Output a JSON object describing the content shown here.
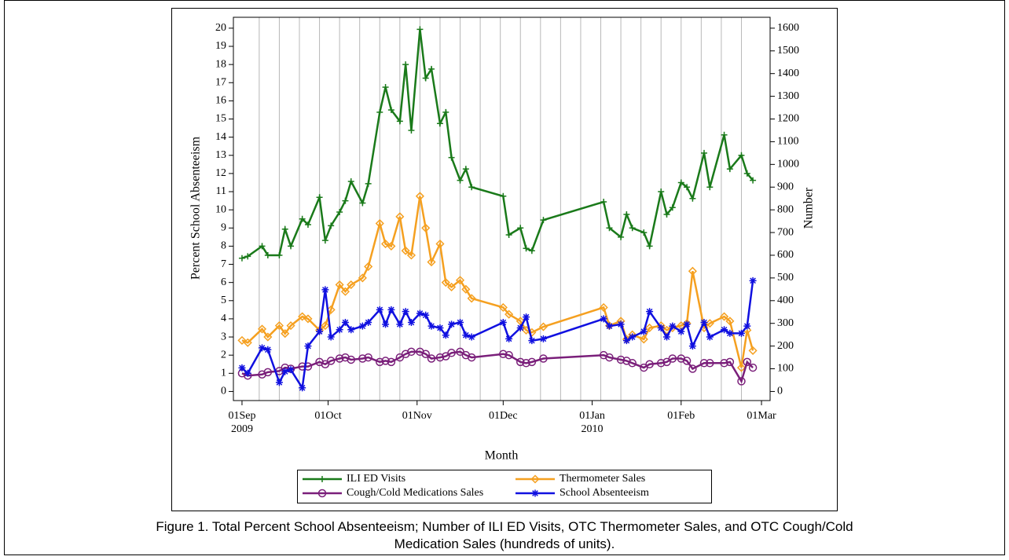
{
  "chart_data": {
    "type": "line",
    "caption": "Figure 1. Total Percent School Absenteeism; Number of ILI ED Visits, OTC Thermometer Sales, and OTC Cough/Cold Medication Sales (hundreds of units).",
    "xlabel": "Month",
    "ylabel": "Percent School Absenteeism",
    "y2label": "Number",
    "xlim": [
      "2009-08-29",
      "2010-03-04"
    ],
    "xticks": [
      {
        "value": "2009-09-01",
        "label": "01Sep 2009"
      },
      {
        "value": "2009-10-01",
        "label": "01Oct"
      },
      {
        "value": "2009-11-01",
        "label": "01Nov"
      },
      {
        "value": "2009-12-01",
        "label": "01Dec"
      },
      {
        "value": "2010-01-01",
        "label": "01Jan 2010"
      },
      {
        "value": "2010-02-01",
        "label": "01Feb"
      },
      {
        "value": "2010-03-01",
        "label": "01Mar"
      }
    ],
    "xgrid": [
      "2009-09-07",
      "2009-09-14",
      "2009-09-21",
      "2009-09-28",
      "2009-10-05",
      "2009-10-12",
      "2009-10-19",
      "2009-10-26",
      "2009-11-02",
      "2009-11-09",
      "2009-11-16",
      "2009-11-23",
      "2009-11-30",
      "2009-12-07",
      "2009-12-14",
      "2009-12-21",
      "2009-12-28",
      "2010-01-04",
      "2010-01-11",
      "2010-01-18",
      "2010-01-25",
      "2010-02-01",
      "2010-02-08",
      "2010-02-15",
      "2010-02-22"
    ],
    "ylim": [
      -0.5,
      20.6
    ],
    "yticks": [
      0,
      1,
      2,
      3,
      4,
      5,
      6,
      7,
      8,
      9,
      10,
      11,
      12,
      13,
      14,
      15,
      16,
      17,
      18,
      19,
      20
    ],
    "y2lim": [
      -40,
      1648
    ],
    "y2ticks": [
      0,
      100,
      200,
      300,
      400,
      500,
      600,
      700,
      800,
      900,
      1000,
      1100,
      1200,
      1300,
      1400,
      1500,
      1600
    ],
    "x": [
      "2009-09-01",
      "2009-09-03",
      "2009-09-08",
      "2009-09-10",
      "2009-09-14",
      "2009-09-16",
      "2009-09-18",
      "2009-09-22",
      "2009-09-24",
      "2009-09-28",
      "2009-09-30",
      "2009-10-02",
      "2009-10-05",
      "2009-10-07",
      "2009-10-09",
      "2009-10-13",
      "2009-10-15",
      "2009-10-19",
      "2009-10-21",
      "2009-10-23",
      "2009-10-26",
      "2009-10-28",
      "2009-10-30",
      "2009-11-02",
      "2009-11-04",
      "2009-11-06",
      "2009-11-09",
      "2009-11-11",
      "2009-11-13",
      "2009-11-16",
      "2009-11-18",
      "2009-11-20",
      "2009-12-01",
      "2009-12-03",
      "2009-12-07",
      "2009-12-09",
      "2009-12-11",
      "2009-12-15",
      "2010-01-05",
      "2010-01-07",
      "2010-01-11",
      "2010-01-13",
      "2010-01-15",
      "2010-01-19",
      "2010-01-21",
      "2010-01-25",
      "2010-01-27",
      "2010-01-29",
      "2010-02-01",
      "2010-02-03",
      "2010-02-05",
      "2010-02-09",
      "2010-02-11",
      "2010-02-16",
      "2010-02-18",
      "2010-02-22",
      "2010-02-24",
      "2010-02-26"
    ],
    "series": [
      {
        "name": "ILI ED Visits",
        "color": "#1a7a1a",
        "marker": "plus",
        "axis": "y2",
        "values": [
          587,
          595,
          640,
          600,
          600,
          715,
          640,
          760,
          735,
          855,
          665,
          730,
          790,
          840,
          925,
          830,
          915,
          1230,
          1340,
          1240,
          1190,
          1440,
          1150,
          1595,
          1380,
          1420,
          1180,
          1230,
          1030,
          930,
          980,
          900,
          860,
          690,
          720,
          630,
          620,
          755,
          835,
          720,
          680,
          780,
          720,
          700,
          640,
          880,
          780,
          810,
          920,
          900,
          850,
          1050,
          900,
          1130,
          980,
          1040,
          960,
          930
        ]
      },
      {
        "name": "Thermometer Sales",
        "color": "#f5a020",
        "marker": "diamond",
        "axis": "y2",
        "values": [
          225,
          215,
          275,
          240,
          290,
          255,
          290,
          330,
          320,
          270,
          290,
          360,
          470,
          440,
          470,
          500,
          550,
          740,
          650,
          640,
          770,
          620,
          600,
          860,
          720,
          570,
          650,
          480,
          460,
          490,
          450,
          410,
          370,
          340,
          310,
          270,
          260,
          285,
          370,
          290,
          310,
          230,
          250,
          230,
          280,
          290,
          270,
          280,
          290,
          300,
          530,
          280,
          300,
          330,
          310,
          105,
          270,
          180
        ]
      },
      {
        "name": "Cough/Cold Medications Sales",
        "color": "#7a1f7a",
        "marker": "circle",
        "axis": "y2",
        "values": [
          80,
          70,
          75,
          85,
          90,
          105,
          100,
          110,
          110,
          130,
          120,
          135,
          145,
          150,
          140,
          145,
          150,
          130,
          135,
          130,
          150,
          165,
          175,
          175,
          165,
          145,
          150,
          155,
          170,
          175,
          160,
          150,
          165,
          160,
          130,
          125,
          130,
          145,
          160,
          150,
          140,
          135,
          125,
          105,
          120,
          125,
          130,
          145,
          145,
          135,
          100,
          125,
          125,
          125,
          130,
          45,
          130,
          105
        ]
      },
      {
        "name": "School Absenteeism",
        "color": "#1010e0",
        "marker": "star",
        "axis": "y",
        "values": [
          1.3,
          1.0,
          2.4,
          2.3,
          0.5,
          1.1,
          1.2,
          0.2,
          2.5,
          3.3,
          5.6,
          3.0,
          3.4,
          3.8,
          3.4,
          3.6,
          3.8,
          4.5,
          3.7,
          4.5,
          3.7,
          4.4,
          3.8,
          4.3,
          4.2,
          3.6,
          3.5,
          3.1,
          3.7,
          3.8,
          3.1,
          3.0,
          3.8,
          2.9,
          3.5,
          4.1,
          2.8,
          2.9,
          4.0,
          3.6,
          3.7,
          2.8,
          3.0,
          3.3,
          4.4,
          3.5,
          3.0,
          3.6,
          3.3,
          3.7,
          2.5,
          3.8,
          3.0,
          3.4,
          3.2,
          3.2,
          3.6,
          6.1
        ]
      }
    ]
  }
}
